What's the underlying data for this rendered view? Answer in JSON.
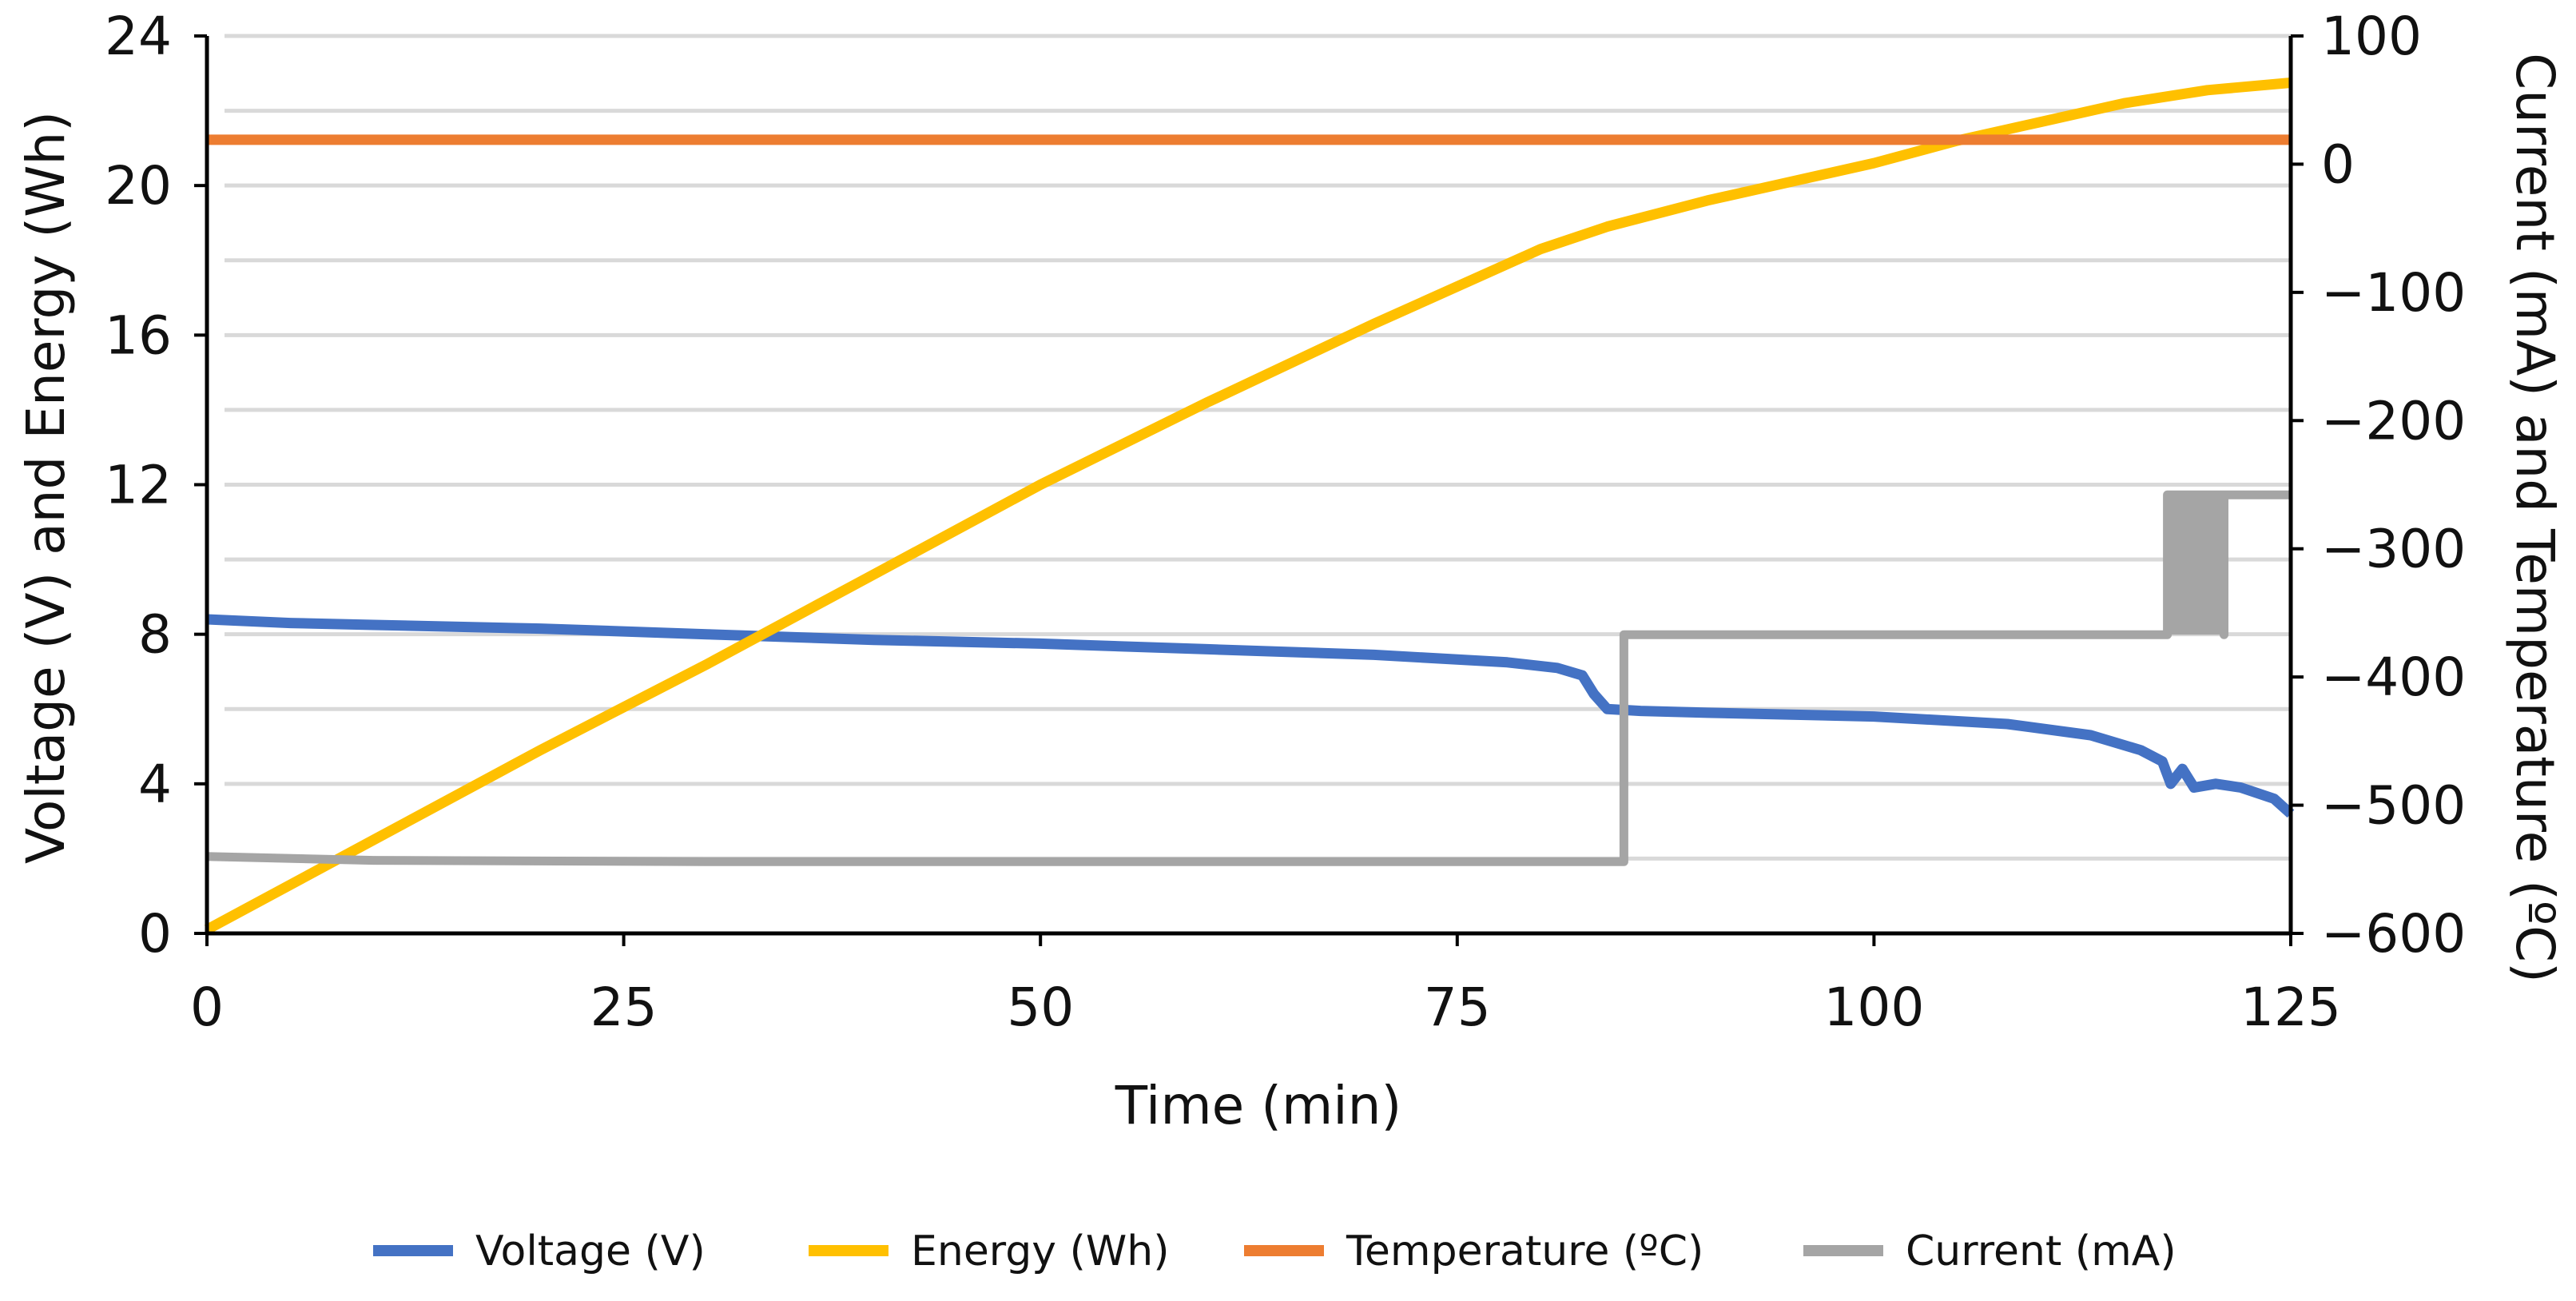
{
  "chart_data": {
    "type": "line",
    "title": "",
    "xlabel": "Time (min)",
    "ylabel_left": "Voltage (V) and Energy (Wh)",
    "ylabel_right": "Current (mA) and Temperature (ºC)",
    "xlim": [
      0,
      125
    ],
    "ylim_left": [
      0,
      24
    ],
    "ylim_right": [
      -600,
      100
    ],
    "x_ticks": [
      0,
      25,
      50,
      75,
      100,
      125
    ],
    "x_tick_labels": [
      "0",
      "25",
      "50",
      "75",
      "100",
      "125"
    ],
    "y_left_ticks": [
      0,
      4,
      8,
      12,
      16,
      20,
      24
    ],
    "y_left_tick_labels": [
      "0",
      "4",
      "8",
      "12",
      "16",
      "20",
      "24"
    ],
    "y_right_ticks": [
      -600,
      -500,
      -400,
      -300,
      -200,
      -100,
      0,
      100
    ],
    "y_right_tick_labels": [
      "−600",
      "−500",
      "−400",
      "−300",
      "−200",
      "−100",
      "0",
      "100"
    ],
    "grid": true,
    "legend_position": "bottom",
    "series": [
      {
        "name": "Voltage (V)",
        "axis": "left",
        "color": "#4472C4",
        "points": [
          [
            0,
            8.4
          ],
          [
            5,
            8.3
          ],
          [
            10,
            8.25
          ],
          [
            20,
            8.15
          ],
          [
            30,
            8.0
          ],
          [
            40,
            7.85
          ],
          [
            50,
            7.75
          ],
          [
            60,
            7.6
          ],
          [
            70,
            7.45
          ],
          [
            78,
            7.25
          ],
          [
            81,
            7.1
          ],
          [
            82.5,
            6.9
          ],
          [
            83.2,
            6.4
          ],
          [
            84,
            6.0
          ],
          [
            86,
            5.95
          ],
          [
            90,
            5.9
          ],
          [
            100,
            5.8
          ],
          [
            108,
            5.6
          ],
          [
            113,
            5.3
          ],
          [
            116,
            4.9
          ],
          [
            117.3,
            4.6
          ],
          [
            117.8,
            4.0
          ],
          [
            118.5,
            4.4
          ],
          [
            119.2,
            3.9
          ],
          [
            120.5,
            4.0
          ],
          [
            122,
            3.9
          ],
          [
            124,
            3.6
          ],
          [
            125,
            3.2
          ]
        ]
      },
      {
        "name": "Energy (Wh)",
        "axis": "left",
        "color": "#FFC000",
        "points": [
          [
            0,
            0.1
          ],
          [
            10,
            2.5
          ],
          [
            20,
            4.9
          ],
          [
            30,
            7.2
          ],
          [
            40,
            9.6
          ],
          [
            50,
            12.0
          ],
          [
            60,
            14.2
          ],
          [
            70,
            16.3
          ],
          [
            80,
            18.3
          ],
          [
            84,
            18.9
          ],
          [
            90,
            19.6
          ],
          [
            100,
            20.6
          ],
          [
            105,
            21.2
          ],
          [
            110,
            21.7
          ],
          [
            115,
            22.2
          ],
          [
            120,
            22.55
          ],
          [
            125,
            22.75
          ]
        ]
      },
      {
        "name": "Temperature (ºC)",
        "axis": "right",
        "color": "#ED7D31",
        "points": [
          [
            0,
            19
          ],
          [
            125,
            19
          ]
        ]
      },
      {
        "name": "Current (mA)",
        "axis": "right",
        "color": "#A5A5A5",
        "points": [
          [
            0,
            -540
          ],
          [
            10,
            -543
          ],
          [
            30,
            -544
          ],
          [
            50,
            -544
          ],
          [
            70,
            -544
          ],
          [
            85,
            -544
          ],
          [
            85,
            -367
          ],
          [
            100,
            -367
          ],
          [
            117.6,
            -367
          ],
          [
            117.6,
            -258
          ],
          [
            121,
            -258
          ],
          [
            121,
            -367
          ],
          [
            121,
            -258
          ],
          [
            125,
            -258
          ]
        ]
      }
    ]
  }
}
